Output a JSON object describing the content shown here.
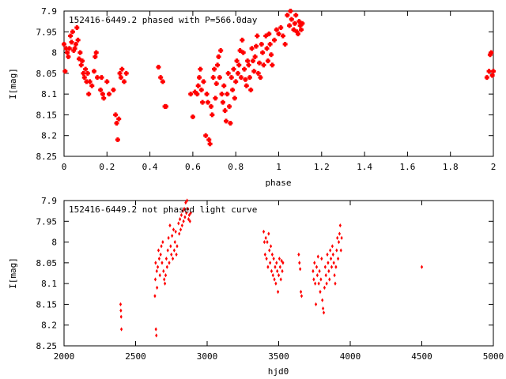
{
  "chart_data": [
    {
      "type": "scatter",
      "title": "152416-6449.2 phased with P=566.0day",
      "xlabel": "phase",
      "ylabel": "I[mag]",
      "xlim": [
        0,
        2
      ],
      "ylim": [
        8.25,
        7.9
      ],
      "y_inverted": true,
      "xticks": [
        0,
        0.2,
        0.4,
        0.6,
        0.8,
        1,
        1.2,
        1.4,
        1.6,
        1.8,
        2
      ],
      "xtick_labels": [
        "0",
        "0.2",
        "0.4",
        "0.6",
        "0.8",
        "1",
        "1.2",
        "1.4",
        "1.6",
        "1.8",
        "2"
      ],
      "yticks": [
        7.9,
        7.95,
        8.0,
        8.05,
        8.1,
        8.15,
        8.2,
        8.25
      ],
      "ytick_labels": [
        "7.9",
        "7.95",
        "8",
        "8.05",
        "8.1",
        "8.15",
        "8.2",
        "8.25"
      ],
      "grid": false,
      "marker_color": "#ff0000",
      "marker": "plus",
      "points": [
        [
          0.0,
          7.98
        ],
        [
          0.005,
          8.045
        ],
        [
          0.01,
          7.99
        ],
        [
          0.015,
          8.0
        ],
        [
          0.02,
          8.01
        ],
        [
          0.025,
          7.99
        ],
        [
          0.03,
          7.96
        ],
        [
          0.035,
          7.975
        ],
        [
          0.04,
          7.95
        ],
        [
          0.045,
          7.995
        ],
        [
          0.05,
          7.99
        ],
        [
          0.055,
          7.98
        ],
        [
          0.06,
          7.94
        ],
        [
          0.065,
          7.97
        ],
        [
          0.07,
          8.015
        ],
        [
          0.075,
          8.0
        ],
        [
          0.08,
          8.03
        ],
        [
          0.085,
          8.02
        ],
        [
          0.09,
          8.05
        ],
        [
          0.095,
          8.06
        ],
        [
          0.1,
          8.04
        ],
        [
          0.105,
          8.07
        ],
        [
          0.11,
          8.05
        ],
        [
          0.115,
          8.1
        ],
        [
          0.12,
          8.07
        ],
        [
          0.13,
          8.08
        ],
        [
          0.14,
          8.045
        ],
        [
          0.145,
          8.01
        ],
        [
          0.15,
          8.0
        ],
        [
          0.155,
          8.06
        ],
        [
          0.17,
          8.09
        ],
        [
          0.175,
          8.06
        ],
        [
          0.18,
          8.1
        ],
        [
          0.185,
          8.11
        ],
        [
          0.2,
          8.07
        ],
        [
          0.21,
          8.1
        ],
        [
          0.23,
          8.09
        ],
        [
          0.24,
          8.15
        ],
        [
          0.245,
          8.17
        ],
        [
          0.25,
          8.21
        ],
        [
          0.255,
          8.16
        ],
        [
          0.26,
          8.05
        ],
        [
          0.265,
          8.06
        ],
        [
          0.27,
          8.04
        ],
        [
          0.28,
          8.07
        ],
        [
          0.29,
          8.05
        ],
        [
          0.44,
          8.035
        ],
        [
          0.45,
          8.06
        ],
        [
          0.46,
          8.07
        ],
        [
          0.47,
          8.13
        ],
        [
          0.475,
          8.13
        ],
        [
          0.59,
          8.1
        ],
        [
          0.6,
          8.155
        ],
        [
          0.61,
          8.095
        ],
        [
          0.62,
          8.1
        ],
        [
          0.625,
          8.08
        ],
        [
          0.63,
          8.06
        ],
        [
          0.635,
          8.04
        ],
        [
          0.64,
          8.09
        ],
        [
          0.645,
          8.12
        ],
        [
          0.65,
          8.07
        ],
        [
          0.66,
          8.2
        ],
        [
          0.665,
          8.1
        ],
        [
          0.67,
          8.12
        ],
        [
          0.675,
          8.21
        ],
        [
          0.68,
          8.22
        ],
        [
          0.685,
          8.13
        ],
        [
          0.69,
          8.15
        ],
        [
          0.695,
          8.06
        ],
        [
          0.7,
          8.04
        ],
        [
          0.705,
          8.11
        ],
        [
          0.71,
          8.075
        ],
        [
          0.715,
          8.03
        ],
        [
          0.72,
          8.01
        ],
        [
          0.725,
          8.06
        ],
        [
          0.73,
          7.995
        ],
        [
          0.735,
          8.1
        ],
        [
          0.74,
          8.12
        ],
        [
          0.745,
          8.08
        ],
        [
          0.75,
          8.14
        ],
        [
          0.755,
          8.165
        ],
        [
          0.76,
          8.1
        ],
        [
          0.765,
          8.05
        ],
        [
          0.77,
          8.13
        ],
        [
          0.775,
          8.17
        ],
        [
          0.78,
          8.06
        ],
        [
          0.785,
          8.09
        ],
        [
          0.79,
          8.04
        ],
        [
          0.795,
          8.11
        ],
        [
          0.8,
          8.07
        ],
        [
          0.805,
          8.02
        ],
        [
          0.81,
          8.05
        ],
        [
          0.815,
          8.03
        ],
        [
          0.82,
          7.995
        ],
        [
          0.825,
          8.06
        ],
        [
          0.83,
          7.97
        ],
        [
          0.835,
          8.0
        ],
        [
          0.84,
          8.04
        ],
        [
          0.845,
          8.065
        ],
        [
          0.85,
          8.08
        ],
        [
          0.855,
          8.02
        ],
        [
          0.86,
          8.03
        ],
        [
          0.865,
          8.06
        ],
        [
          0.87,
          8.09
        ],
        [
          0.875,
          7.99
        ],
        [
          0.88,
          8.02
        ],
        [
          0.885,
          8.045
        ],
        [
          0.89,
          8.01
        ],
        [
          0.895,
          7.985
        ],
        [
          0.9,
          7.96
        ],
        [
          0.905,
          8.05
        ],
        [
          0.91,
          8.025
        ],
        [
          0.915,
          8.06
        ],
        [
          0.92,
          7.98
        ],
        [
          0.925,
          8.0
        ],
        [
          0.93,
          8.03
        ],
        [
          0.94,
          7.96
        ],
        [
          0.945,
          7.99
        ],
        [
          0.95,
          8.02
        ],
        [
          0.955,
          7.955
        ],
        [
          0.96,
          7.98
        ],
        [
          0.965,
          8.005
        ],
        [
          0.97,
          8.03
        ],
        [
          0.98,
          7.97
        ],
        [
          0.99,
          7.945
        ],
        [
          1.0,
          7.955
        ],
        [
          1.01,
          7.94
        ],
        [
          1.02,
          7.96
        ],
        [
          1.03,
          7.98
        ],
        [
          1.04,
          7.91
        ],
        [
          1.05,
          7.935
        ],
        [
          1.055,
          7.9
        ],
        [
          1.06,
          7.92
        ],
        [
          1.07,
          7.945
        ],
        [
          1.075,
          7.93
        ],
        [
          1.08,
          7.91
        ],
        [
          1.085,
          7.95
        ],
        [
          1.09,
          7.955
        ],
        [
          1.095,
          7.925
        ],
        [
          1.1,
          7.935
        ],
        [
          1.105,
          7.945
        ],
        [
          1.11,
          7.93
        ],
        [
          1.97,
          8.06
        ],
        [
          1.98,
          8.045
        ],
        [
          1.985,
          8.005
        ],
        [
          1.99,
          8.0
        ],
        [
          1.995,
          8.055
        ],
        [
          2.0,
          8.045
        ]
      ]
    },
    {
      "type": "scatter",
      "title": "152416-6449.2 not phased light curve",
      "xlabel": "hjd0",
      "ylabel": "I[mag]",
      "xlim": [
        2000,
        5000
      ],
      "ylim": [
        8.25,
        7.9
      ],
      "y_inverted": true,
      "xticks": [
        2000,
        2500,
        3000,
        3500,
        4000,
        4500,
        5000
      ],
      "xtick_labels": [
        "2000",
        "2500",
        "3000",
        "3500",
        "4000",
        "4500",
        "5000"
      ],
      "yticks": [
        7.9,
        7.95,
        8.0,
        8.05,
        8.1,
        8.15,
        8.2,
        8.25
      ],
      "ytick_labels": [
        "7.9",
        "7.95",
        "8",
        "8.05",
        "8.1",
        "8.15",
        "8.2",
        "8.25"
      ],
      "grid": false,
      "marker_color": "#ff0000",
      "marker": "diamond",
      "points": [
        [
          2395,
          8.15
        ],
        [
          2397,
          8.165
        ],
        [
          2399,
          8.18
        ],
        [
          2401,
          8.21
        ],
        [
          2635,
          8.13
        ],
        [
          2638,
          8.09
        ],
        [
          2640,
          8.05
        ],
        [
          2642,
          8.21
        ],
        [
          2645,
          8.225
        ],
        [
          2648,
          8.07
        ],
        [
          2650,
          8.11
        ],
        [
          2655,
          8.06
        ],
        [
          2660,
          8.02
        ],
        [
          2665,
          8.04
        ],
        [
          2670,
          8.08
        ],
        [
          2675,
          8.03
        ],
        [
          2680,
          8.01
        ],
        [
          2685,
          8.05
        ],
        [
          2690,
          8.0
        ],
        [
          2695,
          8.07
        ],
        [
          2700,
          8.09
        ],
        [
          2705,
          8.1
        ],
        [
          2710,
          8.08
        ],
        [
          2715,
          8.04
        ],
        [
          2720,
          8.06
        ],
        [
          2725,
          8.02
        ],
        [
          2730,
          7.99
        ],
        [
          2735,
          8.05
        ],
        [
          2740,
          7.96
        ],
        [
          2745,
          8.01
        ],
        [
          2750,
          8.03
        ],
        [
          2755,
          7.985
        ],
        [
          2760,
          8.04
        ],
        [
          2765,
          7.97
        ],
        [
          2770,
          8.02
        ],
        [
          2775,
          8.0
        ],
        [
          2780,
          7.975
        ],
        [
          2785,
          8.03
        ],
        [
          2790,
          8.01
        ],
        [
          2800,
          7.955
        ],
        [
          2805,
          7.98
        ],
        [
          2810,
          7.945
        ],
        [
          2815,
          7.97
        ],
        [
          2820,
          7.935
        ],
        [
          2825,
          7.96
        ],
        [
          2830,
          7.925
        ],
        [
          2835,
          7.95
        ],
        [
          2840,
          7.92
        ],
        [
          2845,
          7.94
        ],
        [
          2850,
          7.905
        ],
        [
          2855,
          7.93
        ],
        [
          2860,
          7.9
        ],
        [
          2865,
          7.92
        ],
        [
          2870,
          7.945
        ],
        [
          2875,
          7.935
        ],
        [
          2880,
          7.95
        ],
        [
          2885,
          7.93
        ],
        [
          3395,
          7.975
        ],
        [
          3400,
          8.0
        ],
        [
          3405,
          8.03
        ],
        [
          3410,
          7.99
        ],
        [
          3415,
          8.04
        ],
        [
          3420,
          8.0
        ],
        [
          3425,
          8.06
        ],
        [
          3430,
          7.98
        ],
        [
          3435,
          8.02
        ],
        [
          3440,
          8.05
        ],
        [
          3445,
          8.01
        ],
        [
          3450,
          8.07
        ],
        [
          3455,
          8.03
        ],
        [
          3460,
          8.08
        ],
        [
          3465,
          8.04
        ],
        [
          3470,
          8.09
        ],
        [
          3475,
          8.06
        ],
        [
          3480,
          8.1
        ],
        [
          3485,
          8.05
        ],
        [
          3490,
          8.07
        ],
        [
          3495,
          8.12
        ],
        [
          3500,
          8.08
        ],
        [
          3505,
          8.04
        ],
        [
          3510,
          8.06
        ],
        [
          3515,
          8.09
        ],
        [
          3520,
          8.045
        ],
        [
          3525,
          8.07
        ],
        [
          3530,
          8.05
        ],
        [
          3640,
          8.03
        ],
        [
          3645,
          8.05
        ],
        [
          3650,
          8.065
        ],
        [
          3655,
          8.12
        ],
        [
          3660,
          8.13
        ],
        [
          3740,
          8.07
        ],
        [
          3745,
          8.09
        ],
        [
          3750,
          8.05
        ],
        [
          3755,
          8.1
        ],
        [
          3760,
          8.15
        ],
        [
          3765,
          8.06
        ],
        [
          3770,
          8.08
        ],
        [
          3775,
          8.035
        ],
        [
          3780,
          8.1
        ],
        [
          3785,
          8.07
        ],
        [
          3790,
          8.12
        ],
        [
          3795,
          8.09
        ],
        [
          3800,
          8.04
        ],
        [
          3805,
          8.14
        ],
        [
          3810,
          8.16
        ],
        [
          3815,
          8.17
        ],
        [
          3820,
          8.11
        ],
        [
          3825,
          8.06
        ],
        [
          3830,
          8.08
        ],
        [
          3835,
          8.1
        ],
        [
          3840,
          8.03
        ],
        [
          3845,
          8.05
        ],
        [
          3850,
          8.07
        ],
        [
          3855,
          8.09
        ],
        [
          3860,
          8.02
        ],
        [
          3865,
          8.04
        ],
        [
          3870,
          8.06
        ],
        [
          3875,
          8.01
        ],
        [
          3880,
          8.03
        ],
        [
          3885,
          8.05
        ],
        [
          3890,
          8.08
        ],
        [
          3895,
          8.1
        ],
        [
          3900,
          8.06
        ],
        [
          3905,
          8.02
        ],
        [
          3910,
          7.99
        ],
        [
          3915,
          8.04
        ],
        [
          3920,
          8.0
        ],
        [
          3925,
          7.98
        ],
        [
          3930,
          7.96
        ],
        [
          3935,
          8.02
        ],
        [
          3940,
          7.99
        ],
        [
          4500,
          8.06
        ]
      ]
    }
  ]
}
